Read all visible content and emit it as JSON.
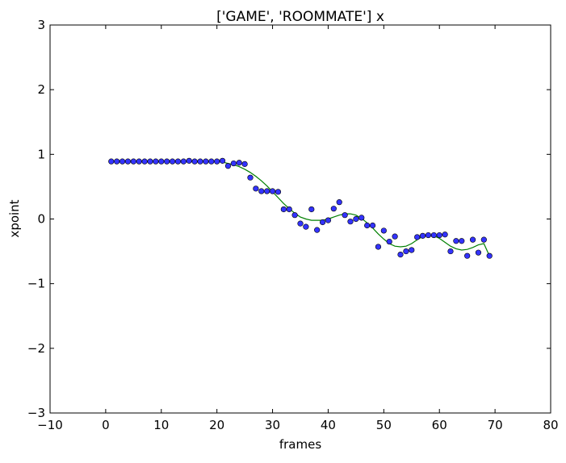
{
  "chart_data": {
    "type": "scatter",
    "title": "['GAME', 'ROOMMATE'] x",
    "xlabel": "frames",
    "ylabel": "xpoint",
    "xlim": [
      -10,
      80
    ],
    "ylim": [
      -3,
      3
    ],
    "xticks": [
      -10,
      0,
      10,
      20,
      30,
      40,
      50,
      60,
      70,
      80
    ],
    "yticks": [
      -3,
      -2,
      -1,
      0,
      1,
      2,
      3
    ],
    "xtick_labels": [
      "−10",
      "0",
      "10",
      "20",
      "30",
      "40",
      "50",
      "60",
      "70",
      "80"
    ],
    "ytick_labels": [
      "−3",
      "−2",
      "−1",
      "0",
      "1",
      "2",
      "3"
    ],
    "grid": false,
    "legend": "none",
    "colors": {
      "points": "#3333ff",
      "point_edge": "#000000",
      "line": "#008000",
      "axes": "#000000"
    },
    "series": [
      {
        "kind": "scatter",
        "x": [
          1,
          2,
          3,
          4,
          5,
          6,
          7,
          8,
          9,
          10,
          11,
          12,
          13,
          14,
          15,
          16,
          17,
          18,
          19,
          20,
          21,
          22,
          23,
          24,
          25,
          26,
          27,
          28,
          29,
          30,
          31,
          32,
          33,
          34,
          35,
          36,
          37,
          38,
          39,
          40,
          41,
          42,
          43,
          44,
          45,
          46,
          47,
          48,
          49,
          50,
          51,
          52,
          53,
          54,
          55,
          56,
          57,
          58,
          59,
          60,
          61,
          62,
          63,
          64,
          65,
          66,
          67,
          68,
          69
        ],
        "y": [
          0.89,
          0.89,
          0.89,
          0.89,
          0.89,
          0.89,
          0.89,
          0.89,
          0.89,
          0.89,
          0.89,
          0.89,
          0.89,
          0.89,
          0.9,
          0.89,
          0.89,
          0.89,
          0.89,
          0.89,
          0.9,
          0.82,
          0.86,
          0.87,
          0.85,
          0.64,
          0.47,
          0.43,
          0.43,
          0.43,
          0.42,
          0.15,
          0.15,
          0.06,
          -0.07,
          -0.12,
          0.15,
          -0.17,
          -0.05,
          -0.02,
          0.16,
          0.26,
          0.06,
          -0.04,
          0,
          0.02,
          -0.1,
          -0.1,
          -0.43,
          -0.18,
          -0.35,
          -0.27,
          -0.55,
          -0.5,
          -0.48,
          -0.28,
          -0.26,
          -0.25,
          -0.25,
          -0.25,
          -0.24,
          -0.5,
          -0.34,
          -0.34,
          -0.57,
          -0.32,
          -0.52,
          -0.32,
          -0.57
        ]
      },
      {
        "kind": "line",
        "x": [
          1,
          5,
          10,
          15,
          20,
          21,
          22,
          23,
          24,
          25,
          26,
          27,
          28,
          29,
          30,
          31,
          32,
          33,
          34,
          35,
          36,
          37,
          38,
          39,
          40,
          41,
          42,
          43,
          44,
          45,
          46,
          47,
          48,
          49,
          50,
          51,
          52,
          53,
          54,
          55,
          56,
          57,
          58,
          59,
          60,
          61,
          62,
          63,
          64,
          65,
          66,
          67,
          68,
          69
        ],
        "y": [
          0.89,
          0.89,
          0.89,
          0.89,
          0.89,
          0.88,
          0.86,
          0.84,
          0.81,
          0.77,
          0.72,
          0.66,
          0.59,
          0.51,
          0.42,
          0.33,
          0.24,
          0.16,
          0.09,
          0.03,
          0,
          -0.02,
          -0.02,
          -0.02,
          0,
          0.03,
          0.06,
          0.08,
          0.08,
          0.06,
          0.01,
          -0.06,
          -0.14,
          -0.23,
          -0.31,
          -0.38,
          -0.42,
          -0.43,
          -0.42,
          -0.38,
          -0.32,
          -0.27,
          -0.25,
          -0.26,
          -0.3,
          -0.36,
          -0.42,
          -0.46,
          -0.48,
          -0.47,
          -0.44,
          -0.4,
          -0.38,
          -0.57
        ]
      }
    ]
  }
}
